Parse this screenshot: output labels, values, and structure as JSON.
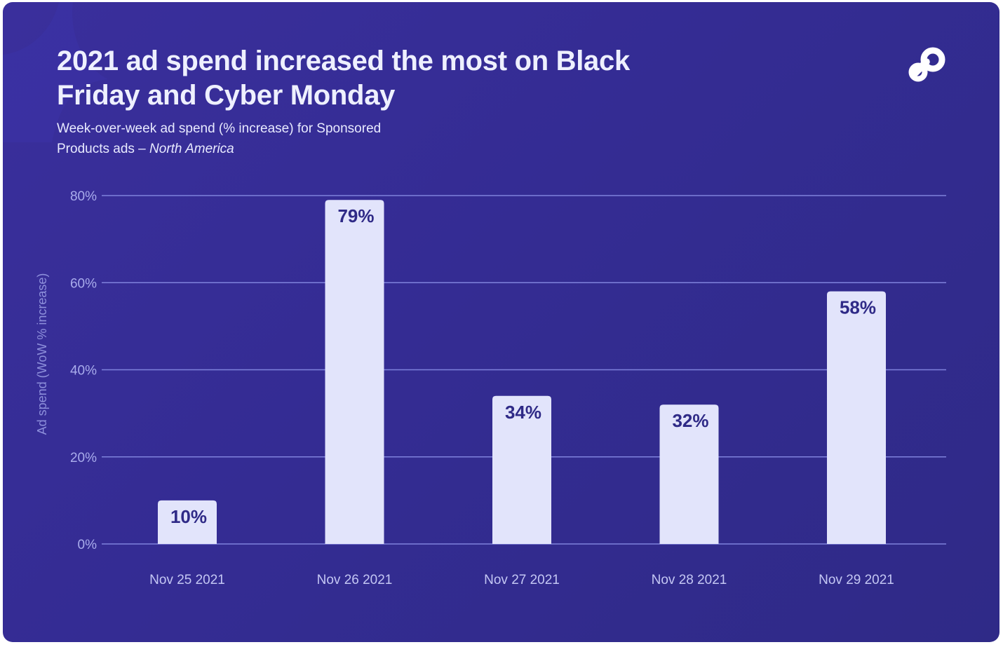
{
  "header": {
    "title": "2021 ad spend increased the most on Black Friday and Cyber Monday",
    "subtitle_main": "Week-over-week ad spend (% increase) for Sponsored Products ads –",
    "subtitle_region": "North America"
  },
  "logo": {
    "icon": "brand-p-logo-icon"
  },
  "colors": {
    "background": "#342c93",
    "bar": "#e2e4fb",
    "bar_label": "#2f2a87",
    "grid": "#7f82dc"
  },
  "chart_data": {
    "type": "bar",
    "title": "2021 ad spend increased the most on Black Friday and Cyber Monday",
    "subtitle": "Week-over-week ad spend (% increase) for Sponsored Products ads – North America",
    "xlabel": "",
    "ylabel": "Ad spend (WoW % increase)",
    "categories": [
      "Nov 25 2021",
      "Nov 26 2021",
      "Nov 27 2021",
      "Nov 28 2021",
      "Nov 29 2021"
    ],
    "values": [
      10,
      79,
      34,
      32,
      58
    ],
    "value_labels": [
      "10%",
      "79%",
      "34%",
      "32%",
      "58%"
    ],
    "ylim": [
      0,
      80
    ],
    "yticks": [
      0,
      20,
      40,
      60,
      80
    ],
    "ytick_labels": [
      "0%",
      "20%",
      "40%",
      "60%",
      "80%"
    ],
    "grid": true,
    "legend": "none"
  }
}
